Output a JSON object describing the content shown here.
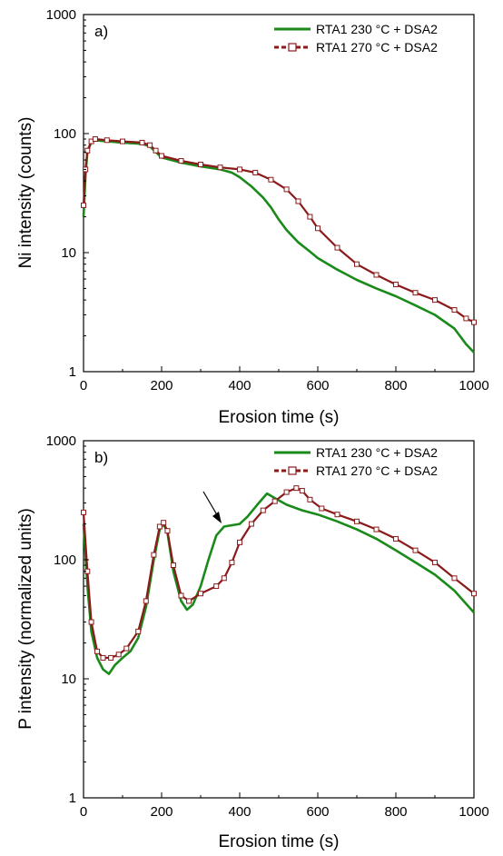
{
  "colors": {
    "series_230": "#1a8a1a",
    "series_270": "#8b1a1a"
  },
  "chart_data": [
    {
      "type": "line",
      "panel_label": "a)",
      "xlabel": "Erosion time (s)",
      "ylabel": "Ni intensity (counts)",
      "xlim": [
        0,
        1000
      ],
      "ylim": [
        1,
        1000
      ],
      "yscale": "log",
      "grid": false,
      "legend": "top-right",
      "x_ticks": [
        "0",
        "200",
        "400",
        "600",
        "800",
        "1000"
      ],
      "y_ticks": [
        "1",
        "10",
        "100",
        "1000"
      ],
      "series": [
        {
          "name": "RTA1 230 °C + DSA2",
          "color": "#1a8a1a",
          "marker": "none",
          "points": [
            [
              0,
              20
            ],
            [
              5,
              45
            ],
            [
              10,
              70
            ],
            [
              20,
              85
            ],
            [
              30,
              88
            ],
            [
              60,
              86
            ],
            [
              100,
              84
            ],
            [
              150,
              82
            ],
            [
              170,
              78
            ],
            [
              185,
              70
            ],
            [
              200,
              63
            ],
            [
              250,
              57
            ],
            [
              300,
              53
            ],
            [
              350,
              50
            ],
            [
              380,
              47
            ],
            [
              400,
              43
            ],
            [
              430,
              36
            ],
            [
              460,
              29
            ],
            [
              480,
              24
            ],
            [
              500,
              19
            ],
            [
              520,
              15.5
            ],
            [
              550,
              12.2
            ],
            [
              580,
              10.2
            ],
            [
              600,
              9
            ],
            [
              650,
              7.2
            ],
            [
              700,
              5.9
            ],
            [
              750,
              5
            ],
            [
              800,
              4.3
            ],
            [
              850,
              3.6
            ],
            [
              900,
              3
            ],
            [
              950,
              2.3
            ],
            [
              980,
              1.7
            ],
            [
              1000,
              1.45
            ]
          ]
        },
        {
          "name": "RTA1 270 °C + DSA2",
          "color": "#8b1a1a",
          "marker": "open-square",
          "points": [
            [
              0,
              25
            ],
            [
              5,
              50
            ],
            [
              10,
              72
            ],
            [
              20,
              86
            ],
            [
              30,
              90
            ],
            [
              60,
              88
            ],
            [
              100,
              86
            ],
            [
              150,
              84
            ],
            [
              170,
              80
            ],
            [
              185,
              72
            ],
            [
              200,
              65
            ],
            [
              250,
              59
            ],
            [
              300,
              55
            ],
            [
              350,
              52
            ],
            [
              400,
              50
            ],
            [
              440,
              47
            ],
            [
              480,
              41
            ],
            [
              520,
              34
            ],
            [
              550,
              27
            ],
            [
              580,
              20
            ],
            [
              600,
              16
            ],
            [
              650,
              11
            ],
            [
              700,
              8
            ],
            [
              750,
              6.5
            ],
            [
              800,
              5.4
            ],
            [
              850,
              4.6
            ],
            [
              900,
              4
            ],
            [
              950,
              3.3
            ],
            [
              980,
              2.8
            ],
            [
              1000,
              2.6
            ]
          ]
        }
      ]
    },
    {
      "type": "line",
      "panel_label": "b)",
      "xlabel": "Erosion time (s)",
      "ylabel": "P intensity (normalized units)",
      "xlim": [
        0,
        1000
      ],
      "ylim": [
        1,
        1000
      ],
      "yscale": "log",
      "grid": false,
      "legend": "top-right",
      "x_ticks": [
        "0",
        "200",
        "400",
        "600",
        "800",
        "1000"
      ],
      "y_ticks": [
        "1",
        "10",
        "100",
        "1000"
      ],
      "annotation": "arrow pointing at shoulder near 360 s",
      "series": [
        {
          "name": "RTA1 230 °C + DSA2",
          "color": "#1a8a1a",
          "marker": "none",
          "points": [
            [
              0,
              200
            ],
            [
              10,
              60
            ],
            [
              20,
              25
            ],
            [
              35,
              15
            ],
            [
              50,
              12
            ],
            [
              65,
              11
            ],
            [
              80,
              13
            ],
            [
              100,
              15
            ],
            [
              120,
              17
            ],
            [
              140,
              22
            ],
            [
              160,
              40
            ],
            [
              180,
              100
            ],
            [
              195,
              180
            ],
            [
              205,
              200
            ],
            [
              215,
              170
            ],
            [
              230,
              80
            ],
            [
              250,
              45
            ],
            [
              265,
              38
            ],
            [
              280,
              42
            ],
            [
              300,
              60
            ],
            [
              320,
              100
            ],
            [
              340,
              160
            ],
            [
              360,
              190
            ],
            [
              380,
              195
            ],
            [
              400,
              200
            ],
            [
              420,
              230
            ],
            [
              445,
              290
            ],
            [
              470,
              360
            ],
            [
              490,
              330
            ],
            [
              520,
              290
            ],
            [
              560,
              260
            ],
            [
              600,
              240
            ],
            [
              650,
              210
            ],
            [
              700,
              180
            ],
            [
              750,
              150
            ],
            [
              800,
              120
            ],
            [
              850,
              95
            ],
            [
              900,
              75
            ],
            [
              950,
              55
            ],
            [
              1000,
              36
            ]
          ]
        },
        {
          "name": "RTA1 270 °C + DSA2",
          "color": "#8b1a1a",
          "marker": "open-square",
          "points": [
            [
              0,
              250
            ],
            [
              10,
              80
            ],
            [
              20,
              30
            ],
            [
              35,
              17
            ],
            [
              50,
              15
            ],
            [
              70,
              15
            ],
            [
              90,
              16
            ],
            [
              110,
              18
            ],
            [
              140,
              25
            ],
            [
              160,
              45
            ],
            [
              180,
              110
            ],
            [
              195,
              190
            ],
            [
              205,
              205
            ],
            [
              215,
              175
            ],
            [
              230,
              90
            ],
            [
              250,
              50
            ],
            [
              270,
              45
            ],
            [
              300,
              52
            ],
            [
              340,
              60
            ],
            [
              360,
              70
            ],
            [
              380,
              95
            ],
            [
              400,
              140
            ],
            [
              430,
              200
            ],
            [
              460,
              260
            ],
            [
              490,
              310
            ],
            [
              520,
              370
            ],
            [
              545,
              400
            ],
            [
              560,
              380
            ],
            [
              580,
              320
            ],
            [
              610,
              270
            ],
            [
              650,
              240
            ],
            [
              700,
              210
            ],
            [
              750,
              180
            ],
            [
              800,
              150
            ],
            [
              850,
              120
            ],
            [
              900,
              95
            ],
            [
              950,
              70
            ],
            [
              1000,
              52
            ]
          ]
        }
      ]
    }
  ]
}
